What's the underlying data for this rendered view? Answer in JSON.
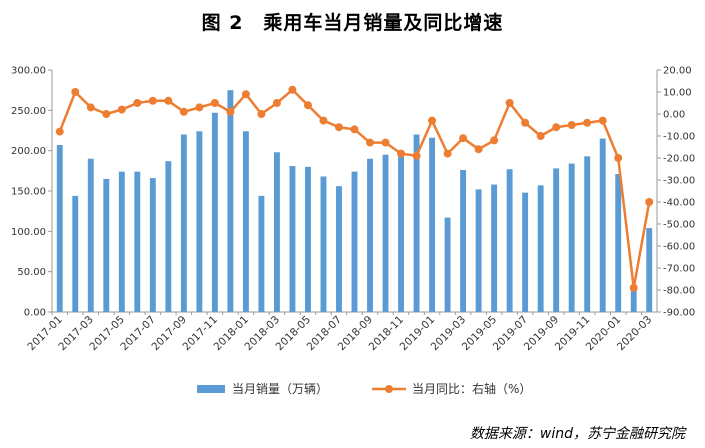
{
  "title": "图 2　乘用车当月销量及同比增速",
  "source": "数据来源：wind，苏宁金融研究院",
  "colors": {
    "bar": "#5B9BD5",
    "line": "#ED7D31"
  },
  "chart_data": {
    "type": "bar",
    "categories": [
      "2017-01",
      "2017-02",
      "2017-03",
      "2017-04",
      "2017-05",
      "2017-06",
      "2017-07",
      "2017-08",
      "2017-09",
      "2017-10",
      "2017-11",
      "2017-12",
      "2018-01",
      "2018-02",
      "2018-03",
      "2018-04",
      "2018-05",
      "2018-06",
      "2018-07",
      "2018-08",
      "2018-09",
      "2018-10",
      "2018-11",
      "2018-12",
      "2019-01",
      "2019-02",
      "2019-03",
      "2019-04",
      "2019-05",
      "2019-06",
      "2019-07",
      "2019-08",
      "2019-09",
      "2019-10",
      "2019-11",
      "2019-12",
      "2020-01",
      "2020-02",
      "2020-03"
    ],
    "x_tick_labels": [
      "2017-01",
      "2017-03",
      "2017-05",
      "2017-07",
      "2017-09",
      "2017-11",
      "2018-01",
      "2018-03",
      "2018-05",
      "2018-07",
      "2018-09",
      "2018-11",
      "2019-01",
      "2019-03",
      "2019-05",
      "2019-07",
      "2019-09",
      "2019-11",
      "2020-01",
      "2020-03"
    ],
    "series": [
      {
        "name": "当月销量（万辆）",
        "type": "bar",
        "axis": "left",
        "values": [
          207,
          144,
          190,
          165,
          174,
          174,
          166,
          187,
          220,
          224,
          247,
          275,
          224,
          144,
          198,
          181,
          180,
          168,
          156,
          174,
          190,
          195,
          198,
          220,
          216,
          117,
          176,
          152,
          158,
          177,
          148,
          157,
          178,
          184,
          193,
          215,
          171,
          26,
          104
        ]
      },
      {
        "name": "当月同比：右轴（%）",
        "type": "line",
        "axis": "right",
        "values": [
          -8,
          10,
          3,
          0,
          2,
          5,
          6,
          6,
          1,
          3,
          5,
          1,
          9,
          0,
          5,
          11,
          4,
          -3,
          -6,
          -7,
          -13,
          -13,
          -18,
          -19,
          -3,
          -18,
          -11,
          -16,
          -12,
          5,
          -4,
          -10,
          -6,
          -5,
          -4,
          -3,
          -20,
          -79,
          -40
        ]
      }
    ],
    "y_left": {
      "lim": [
        0,
        300
      ],
      "ticks": [
        "0.00",
        "50.00",
        "100.00",
        "150.00",
        "200.00",
        "250.00",
        "300.00"
      ]
    },
    "y_right": {
      "lim": [
        -90,
        20
      ],
      "ticks": [
        "-90.00",
        "-80.00",
        "-70.00",
        "-60.00",
        "-50.00",
        "-40.00",
        "-30.00",
        "-20.00",
        "-10.00",
        "0.00",
        "10.00",
        "20.00"
      ]
    },
    "grid": false,
    "legend_position": "bottom"
  }
}
